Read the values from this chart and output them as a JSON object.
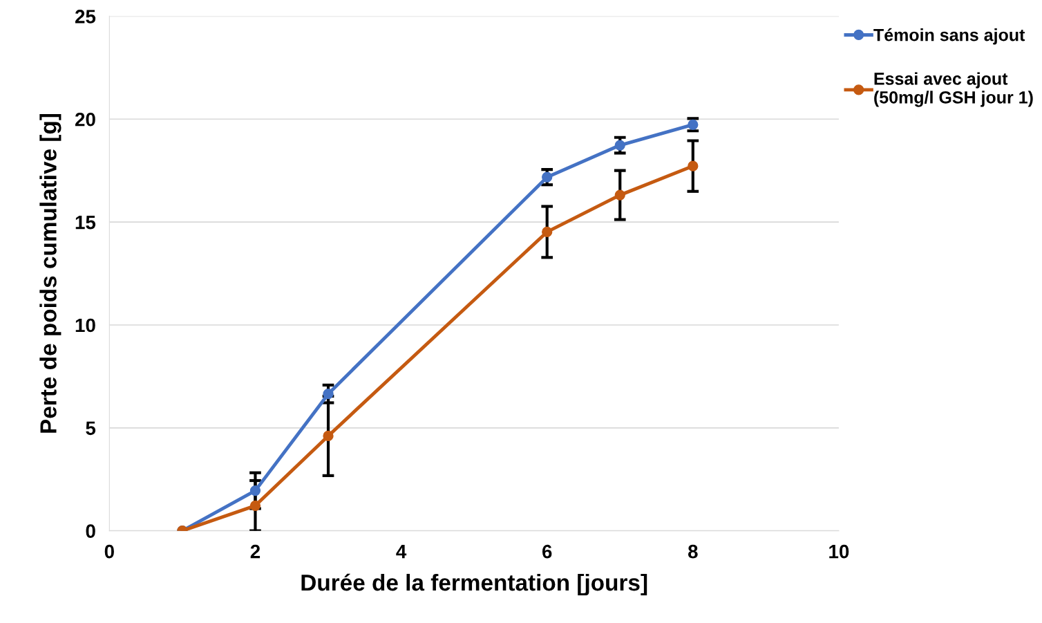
{
  "chart_data": {
    "type": "line",
    "xlabel": "Durée de la fermentation [jours]",
    "ylabel": "Perte de poids cumulative [g]",
    "x": [
      1,
      2,
      3,
      6,
      7,
      8
    ],
    "series": [
      {
        "name": "Témoin sans ajout",
        "color": "#4472c4",
        "values": [
          0,
          1.95,
          6.65,
          17.18,
          18.73,
          19.73
        ],
        "errors": [
          null,
          0.87,
          0.43,
          0.37,
          0.38,
          0.3
        ]
      },
      {
        "name": "Essai avec ajout\n(50mg/l GSH jour 1)",
        "color": "#c55a11",
        "values": [
          0,
          1.22,
          4.61,
          14.52,
          16.31,
          17.72
        ],
        "errors": [
          null,
          1.22,
          1.93,
          1.24,
          1.19,
          1.23
        ]
      }
    ],
    "xlim": [
      0,
      10
    ],
    "xticks": [
      0,
      2,
      4,
      6,
      8,
      10
    ],
    "ylim": [
      0,
      25
    ],
    "yticks": [
      0,
      5,
      10,
      15,
      20,
      25
    ],
    "grid": "y",
    "legend": "right",
    "marker": "circle",
    "line_style": "solid"
  }
}
